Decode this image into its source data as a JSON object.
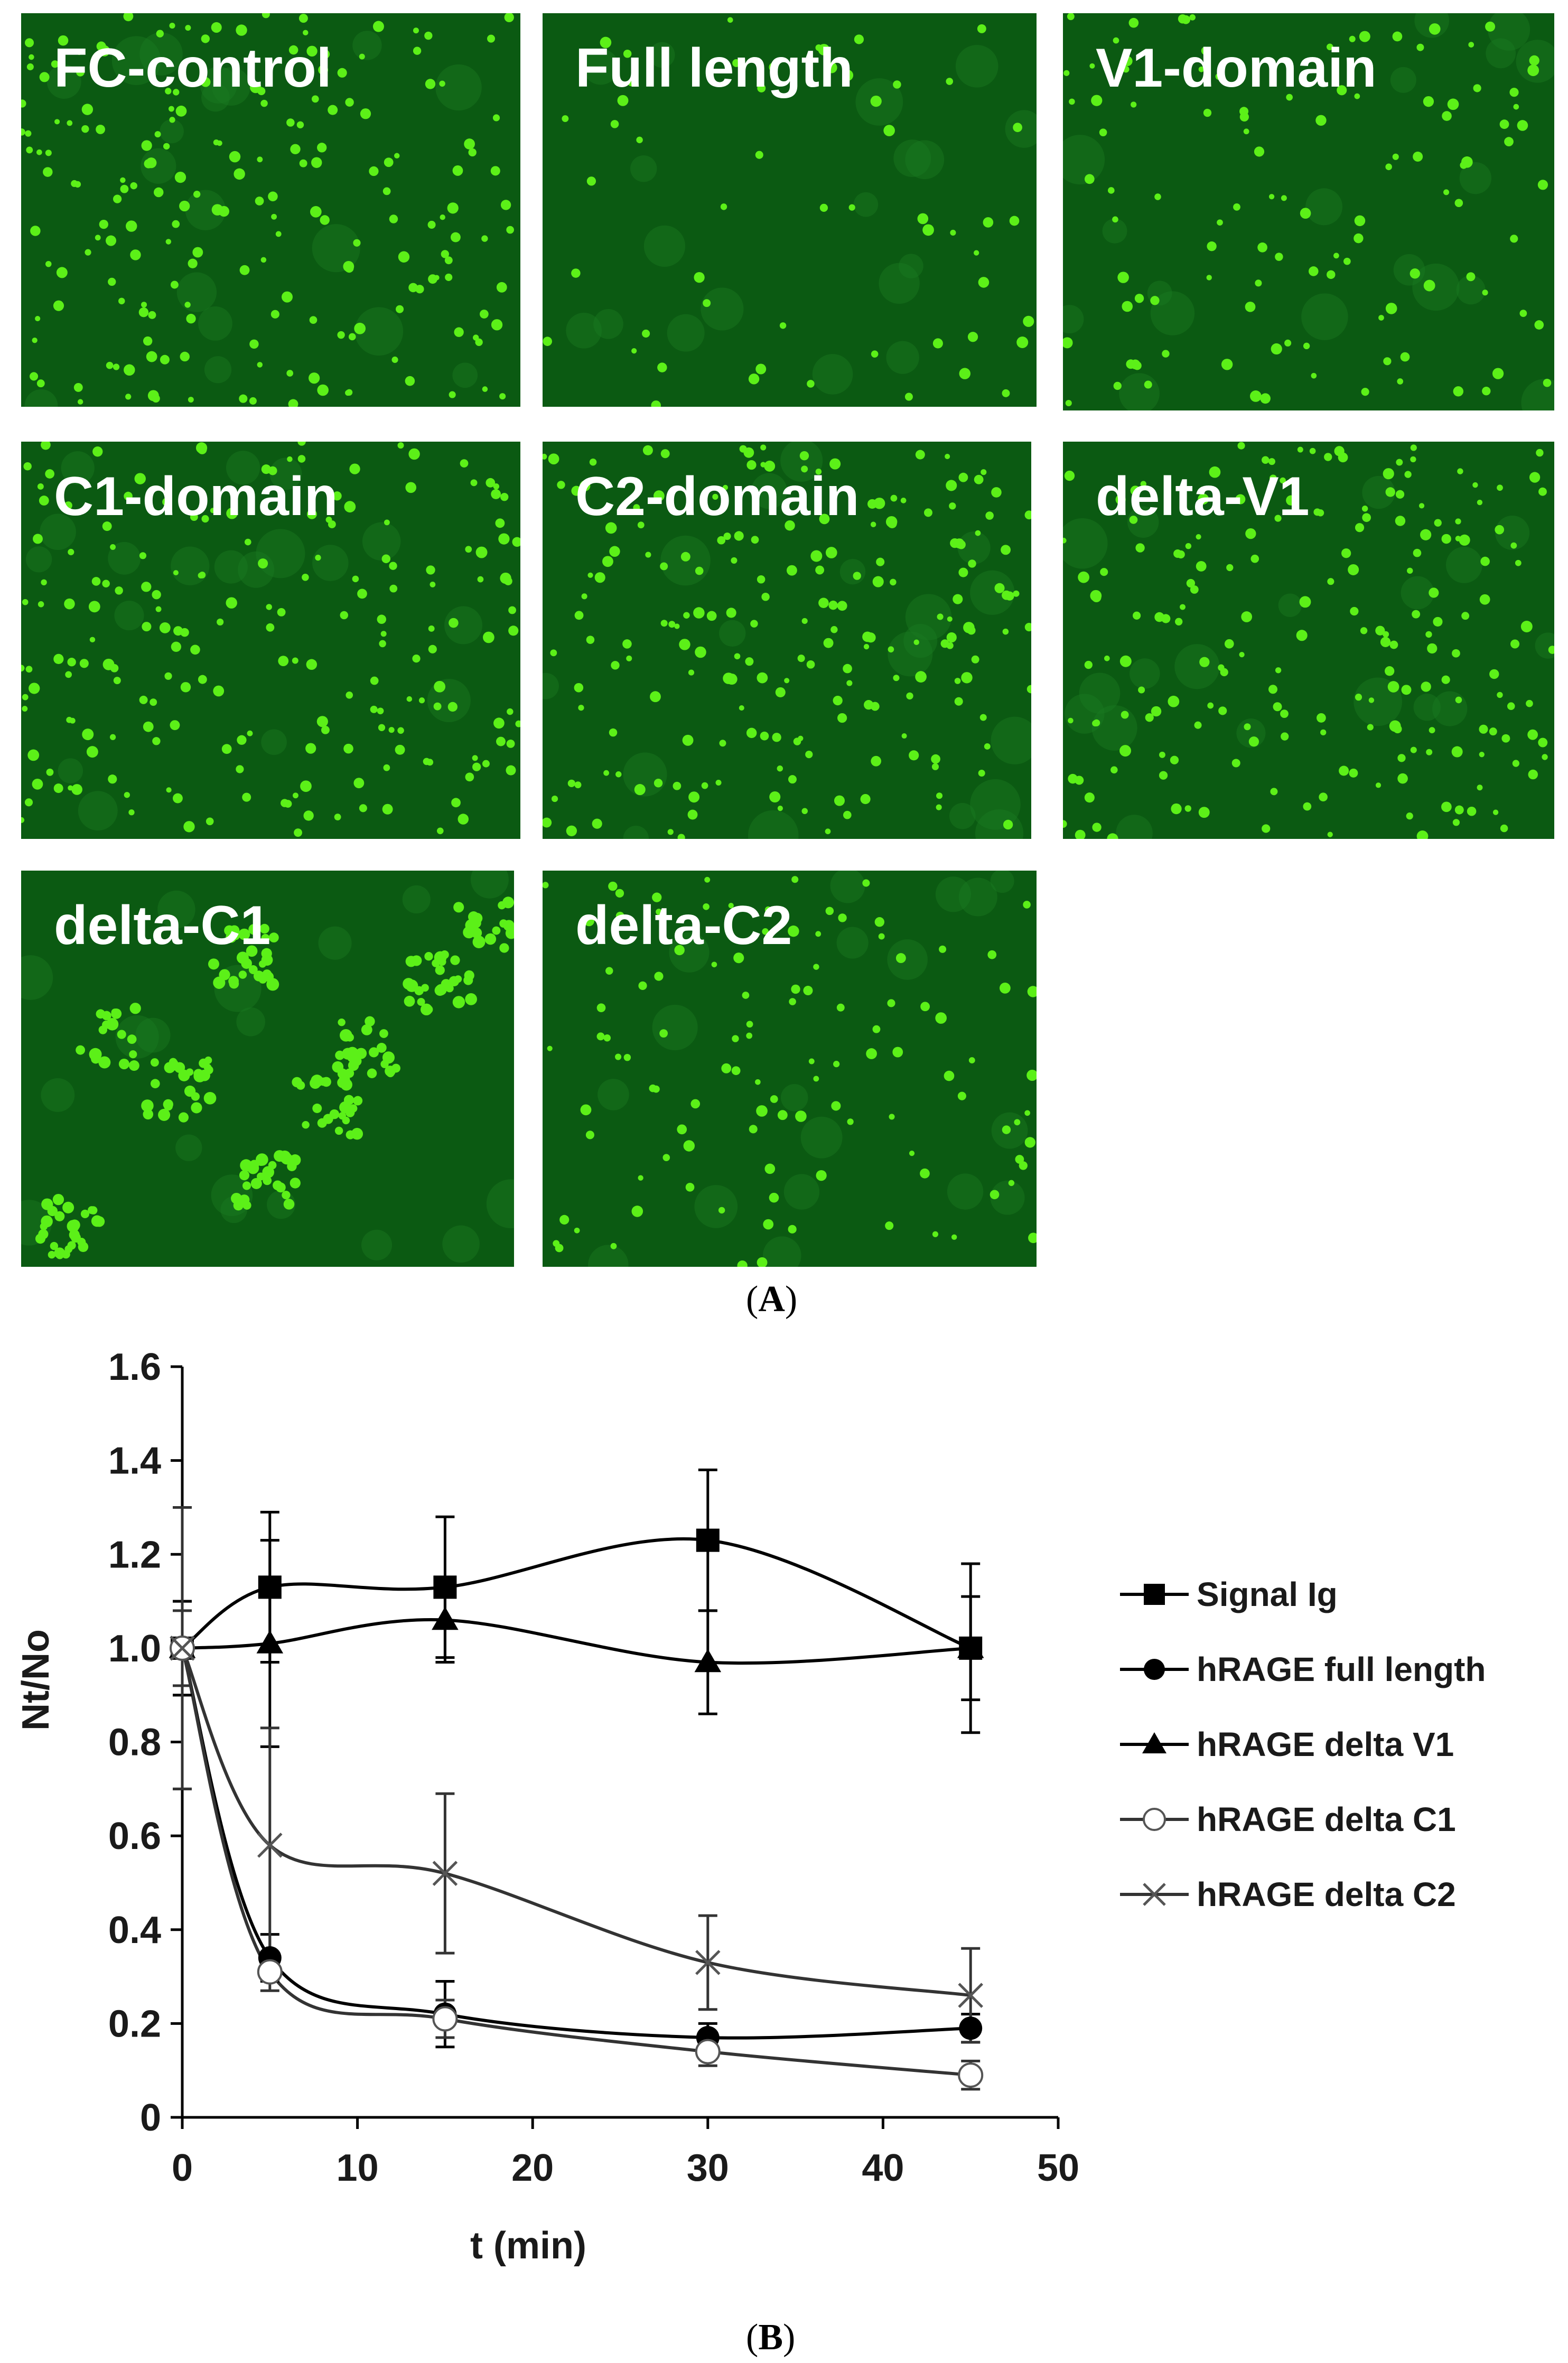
{
  "figure": {
    "panel_a_label": "A",
    "panel_b_label": "B",
    "micrographs": [
      {
        "label": "FC-control",
        "style": "dense"
      },
      {
        "label": "Full length",
        "style": "sparse"
      },
      {
        "label": "V1-domain",
        "style": "medium"
      },
      {
        "label": "C1-domain",
        "style": "dense"
      },
      {
        "label": "C2-domain",
        "style": "dense"
      },
      {
        "label": "delta-V1",
        "style": "dense"
      },
      {
        "label": "delta-C1",
        "style": "clumps"
      },
      {
        "label": "delta-C2",
        "style": "medium"
      }
    ],
    "colors": {
      "panel_bg": "#0b5a12",
      "cell": "#5cf018",
      "label": "#ffffff"
    }
  },
  "chart_data": {
    "type": "line",
    "title": "",
    "xlabel": "t (min)",
    "ylabel": "Nt/No",
    "xlim": [
      0,
      50
    ],
    "ylim": [
      0,
      1.6
    ],
    "xticks": [
      "0",
      "10",
      "20",
      "30",
      "40",
      "50"
    ],
    "yticks": [
      "0",
      "0.2",
      "0.4",
      "0.6",
      "0.8",
      "1.0",
      "1.2",
      "1.4",
      "1.6"
    ],
    "x": [
      0,
      5,
      15,
      30,
      45
    ],
    "legend_position": "right",
    "grid": false,
    "series": [
      {
        "name": "Signal Ig",
        "marker": "square-filled",
        "values": [
          1.0,
          1.13,
          1.13,
          1.23,
          1.0
        ],
        "errors": [
          0.3,
          0.16,
          0.15,
          0.15,
          0.18
        ]
      },
      {
        "name": "hRAGE full length",
        "marker": "circle-filled",
        "values": [
          1.0,
          0.34,
          0.22,
          0.17,
          0.19
        ],
        "errors": [
          0.1,
          0.05,
          0.07,
          0.03,
          0.03
        ]
      },
      {
        "name": "hRAGE delta V1",
        "marker": "triangle-filled",
        "values": [
          1.0,
          1.01,
          1.06,
          0.97,
          1.0
        ],
        "errors": [
          0.1,
          0.22,
          0.09,
          0.11,
          0.11
        ]
      },
      {
        "name": "hRAGE delta C1",
        "marker": "circle-open",
        "values": [
          1.0,
          0.31,
          0.21,
          0.14,
          0.09
        ],
        "errors": [
          0.08,
          0.04,
          0.04,
          0.03,
          0.03
        ]
      },
      {
        "name": "hRAGE delta C2",
        "marker": "x",
        "values": [
          1.0,
          0.58,
          0.52,
          0.33,
          0.26
        ],
        "errors": [
          0.3,
          0.25,
          0.17,
          0.1,
          0.1
        ]
      }
    ]
  }
}
